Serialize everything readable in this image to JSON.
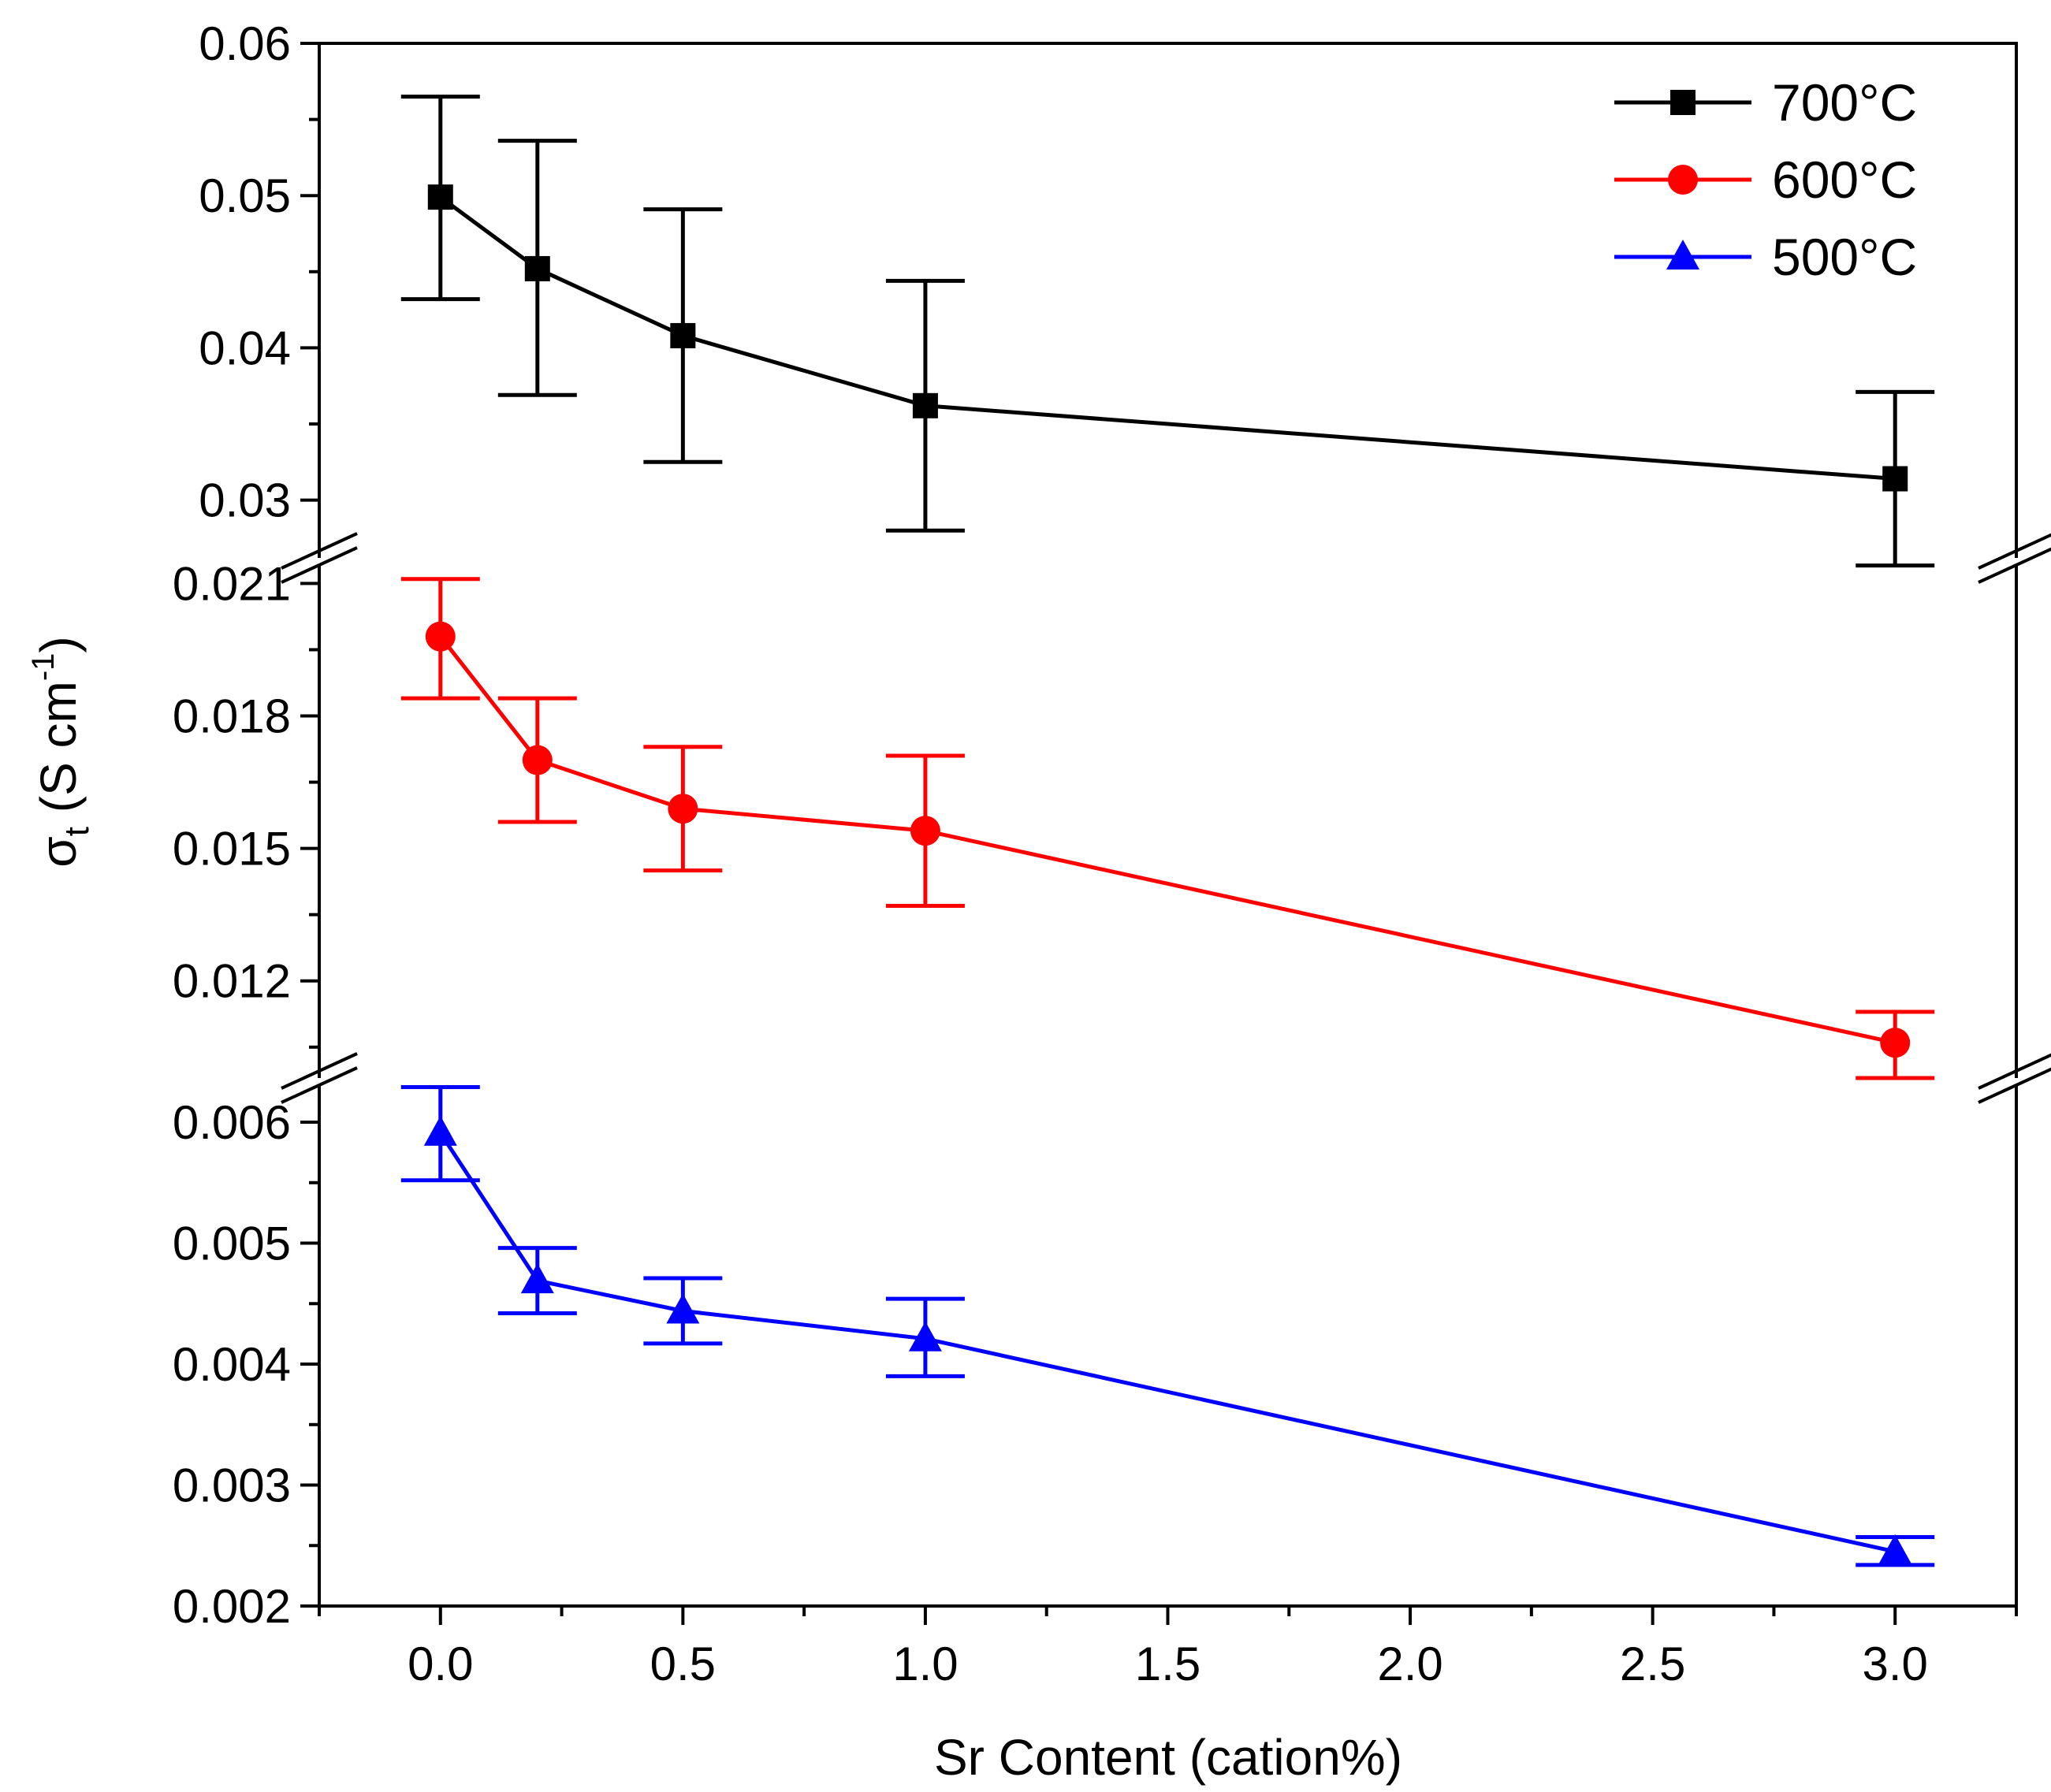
{
  "chart_data": {
    "type": "line",
    "xlabel": "Sr Content (cation%)",
    "ylabel": {
      "main": "σ",
      "sub": "t",
      "unit_open": " (S cm",
      "sup": "-1",
      "unit_close": ")"
    },
    "xlim": [
      -0.25,
      3.25
    ],
    "x_ticks": [
      {
        "v": 0.0,
        "label": "0.0"
      },
      {
        "v": 0.5,
        "label": "0.5"
      },
      {
        "v": 1.0,
        "label": "1.0"
      },
      {
        "v": 1.5,
        "label": "1.5"
      },
      {
        "v": 2.0,
        "label": "2.0"
      },
      {
        "v": 2.5,
        "label": "2.5"
      },
      {
        "v": 3.0,
        "label": "3.0"
      }
    ],
    "panels": [
      {
        "id": "top",
        "ylim": [
          0.0262,
          0.06
        ],
        "ticks": [
          {
            "v": 0.03,
            "label": "0.03"
          },
          {
            "v": 0.04,
            "label": "0.04"
          },
          {
            "v": 0.05,
            "label": "0.05"
          },
          {
            "v": 0.06,
            "label": "0.06"
          }
        ],
        "minor_step": 0.005
      },
      {
        "id": "middle",
        "ylim": [
          0.0098,
          0.0214
        ],
        "ticks": [
          {
            "v": 0.012,
            "label": "0.012"
          },
          {
            "v": 0.015,
            "label": "0.015"
          },
          {
            "v": 0.018,
            "label": "0.018"
          },
          {
            "v": 0.021,
            "label": "0.021"
          }
        ],
        "minor_step": 0.0015
      },
      {
        "id": "bottom",
        "ylim": [
          0.002,
          0.0063
        ],
        "ticks": [
          {
            "v": 0.002,
            "label": "0.002"
          },
          {
            "v": 0.003,
            "label": "0.003"
          },
          {
            "v": 0.004,
            "label": "0.004"
          },
          {
            "v": 0.005,
            "label": "0.005"
          },
          {
            "v": 0.006,
            "label": "0.006"
          }
        ],
        "minor_step": 0.0005
      }
    ],
    "series": [
      {
        "name": "700°C",
        "color": "#000000",
        "marker": "square",
        "panel": 0,
        "x": [
          0.0,
          0.2,
          0.5,
          1.0,
          3.0
        ],
        "y": [
          0.0499,
          0.0452,
          0.0408,
          0.0362,
          0.0314
        ],
        "yerr_low": [
          0.0432,
          0.0369,
          0.0325,
          0.028,
          0.0257
        ],
        "yerr_high": [
          0.0565,
          0.0536,
          0.0491,
          0.0444,
          0.0371
        ]
      },
      {
        "name": "600°C",
        "color": "#ff0000",
        "marker": "circle",
        "panel": 1,
        "x": [
          0.0,
          0.2,
          0.5,
          1.0,
          3.0
        ],
        "y": [
          0.0198,
          0.017,
          0.0159,
          0.0154,
          0.0106
        ],
        "yerr_low": [
          0.0184,
          0.0156,
          0.0145,
          0.0137,
          0.0098
        ],
        "yerr_high": [
          0.0211,
          0.0184,
          0.0173,
          0.0171,
          0.0113
        ]
      },
      {
        "name": "500°C",
        "color": "#0000ff",
        "marker": "triangle",
        "panel": 2,
        "x": [
          0.0,
          0.2,
          0.5,
          1.0,
          3.0
        ],
        "y": [
          0.00591,
          0.00469,
          0.00444,
          0.00421,
          0.00245
        ],
        "yerr_low": [
          0.00552,
          0.00442,
          0.00417,
          0.0039,
          0.00234
        ],
        "yerr_high": [
          0.00629,
          0.00496,
          0.00471,
          0.00454,
          0.00257
        ]
      }
    ],
    "legend": {
      "position": "top-right",
      "entries": [
        "700°C",
        "600°C",
        "500°C"
      ]
    }
  }
}
